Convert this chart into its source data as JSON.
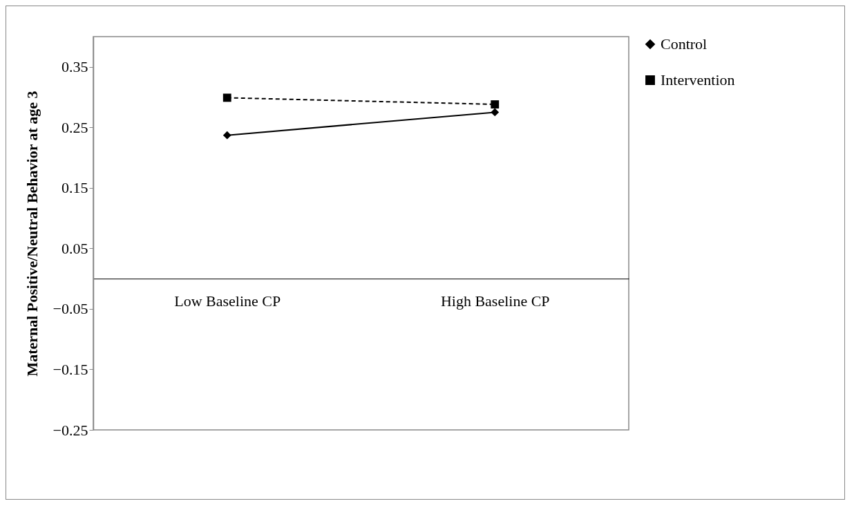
{
  "chart_data": {
    "type": "line",
    "ylabel": "Maternal Positive/Neutral Behavior at age 3",
    "categories": [
      "Low Baseline CP",
      "High Baseline CP"
    ],
    "series": [
      {
        "name": "Control",
        "color": "#000000",
        "values": [
          0.237,
          0.275
        ],
        "marker": "diamond",
        "line_style": "solid"
      },
      {
        "name": "Intervention",
        "color": "#000000",
        "values": [
          0.299,
          0.288
        ],
        "marker": "square",
        "line_style": "dashed"
      }
    ],
    "ylim": [
      -0.25,
      0.4
    ],
    "yticks": [
      -0.25,
      -0.15,
      -0.05,
      0.05,
      0.15,
      0.25,
      0.35
    ],
    "grid": false,
    "legend": "right"
  }
}
